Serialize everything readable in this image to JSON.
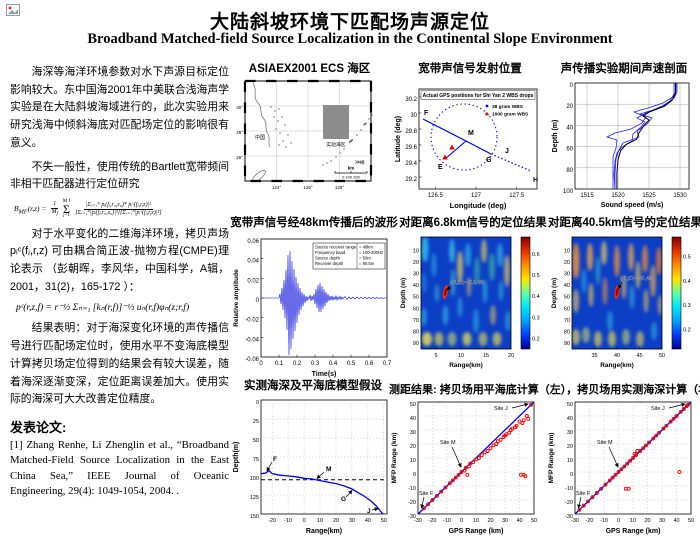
{
  "page": {
    "title_zh": "大陆斜坡环境下匹配场声源定位",
    "title_en": "Broadband Matched-field Source Localization in the Continental Slope Environment"
  },
  "left": {
    "para1": "海深等海洋环境参数对水下声源目标定位影响较大。东中国海2001年中美联合浅海声学实验是在大陆斜坡海域进行的，此次实验用来研究浅海中倾斜海底对匹配场定位的影响很有意义。",
    "para2": "不失一般性，使用传统的Bartlett宽带频间非相干匹配器进行定位研究",
    "formula1": {
      "lhs": "B",
      "lhs_sub": "MF",
      "lhs_args": "(r,z) =",
      "coef_num": "1",
      "coef_den": "M",
      "coef_den_sub": "f",
      "sum_top": "M f",
      "sum_sym": "Σ",
      "sum_bot": "j=1",
      "num": "|Σᵢ₌₁ᴺ pᵢ(fⱼ,r₀,z₀)* pᵢᶜ(fⱼ,r,z)|²",
      "den": "[Σᵢ₌₁ᴺ|pᵢ(fⱼ,r₀,z₀)|²][Σᵢ₌₁ᴺ|pᵢᶜ(fⱼ,r,z)|²]"
    },
    "para3": "对于水平变化的二维海洋环境，拷贝声场 pᵢᶜ(fⱼ,r,z) 可由耦合简正波-抛物方程(CMPE)理论表示 （彭朝晖，李风华，中国科学，A辑，2001，31(2)，165-172 ）：",
    "formula2": "pᶜ(r,z,f) = r⁻½ Σₙ₌₁ [kₙ(r,f)]⁻½ uₙ(r,f)φₙ(z;r,f)",
    "para4": "结果表明：对于海深变化环境的声传播信号进行匹配场定位时，使用水平不变海底模型计算拷贝场定位得到的结果会有较大误差，随着海深逐渐变深，定位距离误差加大。使用实际的海深可大大改善定位精度。",
    "pub_heading": "发表论文:",
    "pub_ref": "[1] Zhang Renhe, Li Zhenglin et al., “Broadband Matched-Field Source Localization in the East China Sea,” IEEE Journal of Oceanic Engineering, 29(4): 1049-1054, 2004. ."
  },
  "map": {
    "title": "ASIAEX2001 ECS 海区",
    "area_label": "实验海区",
    "okinawa": "冲绳",
    "mainland": "中国",
    "scale_unit": "km",
    "scale_vals": "0     100    200",
    "lon_ticks": [
      "124°",
      "126°",
      "128°"
    ],
    "lat_ticks": [
      "30°",
      "28°",
      "26°"
    ]
  },
  "gps": {
    "title": "宽带声信号发射位置",
    "inner_title": "Actual GPS positions for Shi Yan 2 WBS drops",
    "legend1": "38 gram WBS",
    "legend2": "1000 gram WBS",
    "xlabel": "Longitude (deg)",
    "ylabel": "Latitude (deg)",
    "xticks": [
      "126.5",
      "127",
      "127.5"
    ],
    "yticks": [
      "30.2",
      "30",
      "29.8",
      "29.6",
      "29.4",
      "29.2"
    ],
    "pF": "F",
    "pM": "M",
    "pG": "G",
    "pJ": "J",
    "pE": "E",
    "pH": "H"
  },
  "ssp": {
    "title": "声传播实验期间声速剖面",
    "xlabel": "Sound speed (m/s)",
    "ylabel": "Depth (m)",
    "xticks": [
      "1515",
      "1520",
      "1525",
      "1530"
    ],
    "yticks": [
      "0",
      "20",
      "40",
      "60",
      "80",
      "100"
    ]
  },
  "wave": {
    "title": "宽带声信号经48km传播后的波形",
    "xlabel": "Time(s)",
    "ylabel": "Relative amplitude",
    "xticks": [
      "0",
      "0.1",
      "0.2",
      "0.3",
      "0.4",
      "0.5",
      "0.6",
      "0.7"
    ],
    "yticks": [
      "0.06",
      "0.04",
      "0.02",
      "0",
      "-0.02",
      "-0.04",
      "-0.06"
    ],
    "info_labels": [
      "Source receiver range",
      "Frequency band",
      "Source depth",
      "Receiver depth"
    ],
    "info_values": [
      "= 48km",
      "= 100-200Hz",
      "= 50m",
      "= 90.5m"
    ]
  },
  "mfp1": {
    "title": "对距离6.8km信号的定位结果",
    "xlabel": "Range(km)",
    "ylabel": "Depth (m)",
    "xticks": [
      "5",
      "10",
      "15",
      "20"
    ],
    "yticks": [
      "10",
      "20",
      "30",
      "40",
      "50",
      "60",
      "70",
      "80",
      "90"
    ],
    "annotation": "(r0,z0)=(6.9,48)",
    "cticks": [
      "0.6",
      "0.5",
      "0.4",
      "0.3",
      "0.2"
    ]
  },
  "mfp2": {
    "title": "对距离40.5km信号的定位结果",
    "xlabel": "Range(km)",
    "ylabel": "Depth (m)",
    "xticks": [
      "35",
      "40",
      "45",
      "50"
    ],
    "yticks": [
      "10",
      "20",
      "30",
      "40",
      "50",
      "60",
      "70",
      "80",
      "90"
    ],
    "annotation": "(r0,z0)=(40,48)",
    "cticks": [
      "0.5",
      "0.4",
      "0.3",
      "0.2"
    ]
  },
  "depth": {
    "title": "实测海深及平海底模型假设",
    "xlabel": "Range(km)",
    "ylabel": "Depth(m)",
    "xticks": [
      "-20",
      "-10",
      "0",
      "10",
      "20",
      "30",
      "40",
      "50"
    ],
    "yticks": [
      "0",
      "25",
      "50",
      "75",
      "100",
      "125",
      "150"
    ],
    "pF": "F",
    "pM": "M",
    "pG": "G",
    "pJ": "J"
  },
  "range_results": {
    "heading": "测距结果: 拷贝场用平海底计算（左），拷贝场用实测海深计算（右）",
    "xlabel": "GPS Range (km)",
    "ylabel": "MFP Range (km)",
    "ticks": [
      "-30",
      "-20",
      "-10",
      "0",
      "10",
      "20",
      "30",
      "40",
      "50"
    ],
    "site_j": "Site J",
    "site_m": "Site M",
    "site_f": "Site F",
    "left_points": [
      [
        -26,
        -26
      ],
      [
        -23,
        -23
      ],
      [
        -20,
        -20
      ],
      [
        -17,
        -17
      ],
      [
        -14,
        -14
      ],
      [
        -11,
        -11
      ],
      [
        -8,
        -8
      ],
      [
        -6,
        -6
      ],
      [
        -4,
        -4
      ],
      [
        -2,
        -2
      ],
      [
        0,
        0
      ],
      [
        2,
        1
      ],
      [
        3,
        3
      ],
      [
        5,
        4
      ],
      [
        6,
        6
      ],
      [
        8,
        7
      ],
      [
        4,
        -2
      ],
      [
        10,
        9
      ],
      [
        12,
        10
      ],
      [
        14,
        12
      ],
      [
        16,
        14
      ],
      [
        18,
        15
      ],
      [
        20,
        17
      ],
      [
        22,
        19
      ],
      [
        24,
        20
      ],
      [
        25,
        22
      ],
      [
        27,
        23
      ],
      [
        29,
        25
      ],
      [
        30,
        26
      ],
      [
        31,
        27
      ],
      [
        33,
        28
      ],
      [
        34,
        30
      ],
      [
        35,
        31
      ],
      [
        37,
        32
      ],
      [
        38,
        33
      ],
      [
        40,
        36
      ],
      [
        42,
        35
      ],
      [
        43,
        37
      ],
      [
        45,
        40
      ],
      [
        46,
        38
      ],
      [
        48,
        48
      ],
      [
        41,
        -2
      ],
      [
        43,
        -2
      ],
      [
        44,
        -3
      ]
    ],
    "right_points": [
      [
        -27,
        -27
      ],
      [
        -24,
        -24
      ],
      [
        -21,
        -21
      ],
      [
        -18,
        -18
      ],
      [
        -15,
        -15
      ],
      [
        -12,
        -12
      ],
      [
        -9,
        -9
      ],
      [
        -6,
        -6
      ],
      [
        -4,
        -4
      ],
      [
        -2,
        -2
      ],
      [
        0,
        0
      ],
      [
        2,
        2
      ],
      [
        4,
        4
      ],
      [
        6,
        6
      ],
      [
        8,
        8
      ],
      [
        10,
        10
      ],
      [
        11,
        13
      ],
      [
        13,
        15
      ],
      [
        12,
        12
      ],
      [
        15,
        15
      ],
      [
        17,
        17
      ],
      [
        19,
        19
      ],
      [
        21,
        21
      ],
      [
        24,
        24
      ],
      [
        26,
        26
      ],
      [
        28,
        28
      ],
      [
        31,
        31
      ],
      [
        33,
        33
      ],
      [
        36,
        36
      ],
      [
        38,
        38
      ],
      [
        40,
        40
      ],
      [
        43,
        43
      ],
      [
        45,
        45
      ],
      [
        47,
        47
      ],
      [
        48,
        48
      ],
      [
        5,
        -12
      ],
      [
        7,
        -12
      ],
      [
        42,
        0
      ]
    ]
  }
}
